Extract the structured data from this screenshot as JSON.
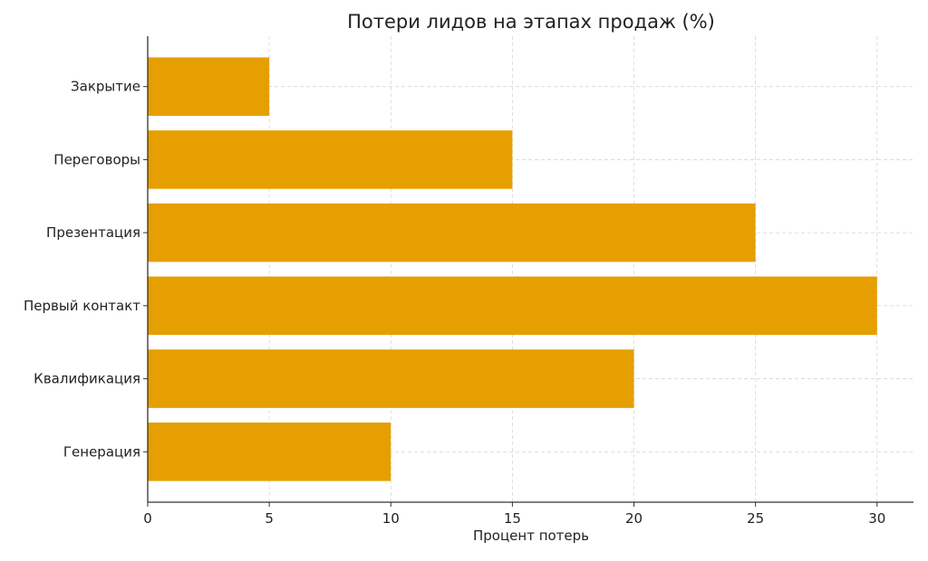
{
  "chart_data": {
    "type": "bar",
    "orientation": "horizontal",
    "title": "Потери лидов на этапах продаж (%)",
    "xlabel": "Процент потерь",
    "ylabel": "",
    "categories": [
      "Генерация",
      "Квалификация",
      "Первый контакт",
      "Презентация",
      "Переговоры",
      "Закрытие"
    ],
    "values": [
      10,
      20,
      30,
      25,
      15,
      5
    ],
    "xlim": [
      0,
      31.5
    ],
    "xticks": [
      0,
      5,
      10,
      15,
      20,
      25,
      30
    ],
    "grid": true,
    "color": "#E69F00"
  }
}
